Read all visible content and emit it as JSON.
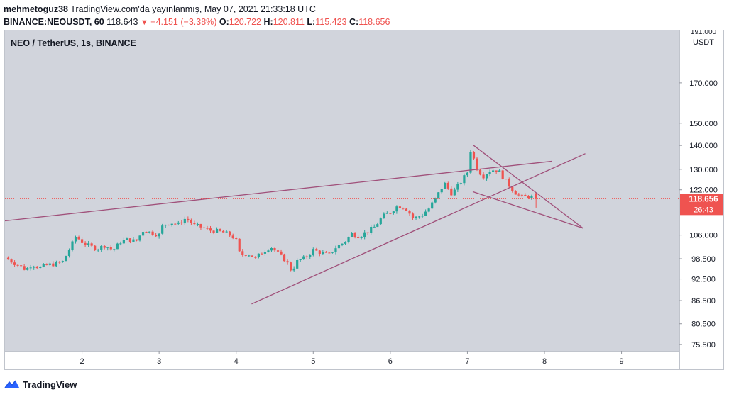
{
  "header": {
    "author": "mehmetoguz38",
    "published": "TradingView.com'da yayınlanmış, May 07, 2021 21:33:18 UTC",
    "symbol": "BINANCE:NEOUSDT, 60",
    "last": "118.643",
    "change_arrow": "▼",
    "change": "−4.151 (−3.38%)",
    "o_label": "O:",
    "o_value": "120.722",
    "h_label": "H:",
    "h_value": "120.811",
    "l_label": "L:",
    "l_value": "115.423",
    "c_label": "C:",
    "c_value": "118.656"
  },
  "footer": {
    "brand": "TradingView"
  },
  "chart_data": {
    "type": "candlestick",
    "title": "NEO / TetherUS, 1s, BINANCE",
    "x_ticks": [
      "2",
      "3",
      "4",
      "5",
      "6",
      "7",
      "8",
      "9"
    ],
    "y_ticks": [
      "170.000",
      "150.000",
      "140.000",
      "130.000",
      "122.000",
      "106.000",
      "98.500",
      "92.500",
      "86.500",
      "80.500",
      "75.500"
    ],
    "y_axis_unit": "USDT",
    "y_axis_top_partial": "191.000",
    "scale": "log",
    "ylim": [
      74,
      200
    ],
    "xlim": [
      1.0,
      9.75
    ],
    "last_price": "118.656",
    "countdown": "26:43",
    "colors": {
      "up": "#26a69a",
      "down": "#ef5350",
      "trendline": "#a0507a",
      "background": "#d1d4dc",
      "price_line": "#ef5350"
    },
    "close_path": [
      [
        1.0,
        98.8
      ],
      [
        1.1,
        97.5
      ],
      [
        1.2,
        96.2
      ],
      [
        1.27,
        95.2
      ],
      [
        1.35,
        96.8
      ],
      [
        1.45,
        95.8
      ],
      [
        1.55,
        96.6
      ],
      [
        1.65,
        96.9
      ],
      [
        1.75,
        97.6
      ],
      [
        1.85,
        102.0
      ],
      [
        1.92,
        105.6
      ],
      [
        2.0,
        103.8
      ],
      [
        2.1,
        102.4
      ],
      [
        2.2,
        101.6
      ],
      [
        2.3,
        102.7
      ],
      [
        2.4,
        101.1
      ],
      [
        2.5,
        103.8
      ],
      [
        2.6,
        104.6
      ],
      [
        2.7,
        103.9
      ],
      [
        2.8,
        107.8
      ],
      [
        2.9,
        106.7
      ],
      [
        3.0,
        106.1
      ],
      [
        3.05,
        109.4
      ],
      [
        3.15,
        110.2
      ],
      [
        3.25,
        109.6
      ],
      [
        3.35,
        111.8
      ],
      [
        3.45,
        109.3
      ],
      [
        3.55,
        108.6
      ],
      [
        3.65,
        107.6
      ],
      [
        3.75,
        107.3
      ],
      [
        3.85,
        106.8
      ],
      [
        3.95,
        105.6
      ],
      [
        4.0,
        104.2
      ],
      [
        4.05,
        99.6
      ],
      [
        4.15,
        100.1
      ],
      [
        4.25,
        98.6
      ],
      [
        4.35,
        100.8
      ],
      [
        4.45,
        102.2
      ],
      [
        4.55,
        100.0
      ],
      [
        4.65,
        97.8
      ],
      [
        4.72,
        94.8
      ],
      [
        4.8,
        98.0
      ],
      [
        4.9,
        98.8
      ],
      [
        5.0,
        101.2
      ],
      [
        5.1,
        100.4
      ],
      [
        5.2,
        99.6
      ],
      [
        5.3,
        102.2
      ],
      [
        5.4,
        103.6
      ],
      [
        5.5,
        106.4
      ],
      [
        5.6,
        105.6
      ],
      [
        5.7,
        107.2
      ],
      [
        5.8,
        108.8
      ],
      [
        5.9,
        112.3
      ],
      [
        6.0,
        113.8
      ],
      [
        6.1,
        116.2
      ],
      [
        6.2,
        115.3
      ],
      [
        6.3,
        111.6
      ],
      [
        6.4,
        112.6
      ],
      [
        6.5,
        115.1
      ],
      [
        6.6,
        119.3
      ],
      [
        6.7,
        124.6
      ],
      [
        6.8,
        120.4
      ],
      [
        6.9,
        124.3
      ],
      [
        7.0,
        128.8
      ],
      [
        7.05,
        139.6
      ],
      [
        7.1,
        131.6
      ],
      [
        7.2,
        127.1
      ],
      [
        7.3,
        129.8
      ],
      [
        7.4,
        129.6
      ],
      [
        7.5,
        125.3
      ],
      [
        7.6,
        121.4
      ],
      [
        7.7,
        119.3
      ],
      [
        7.8,
        119.6
      ],
      [
        7.87,
        118.7
      ]
    ],
    "trendlines": [
      {
        "from": [
          1.0,
          110.8
        ],
        "to": [
          8.1,
          133.3
        ]
      },
      {
        "from": [
          4.2,
          85.6
        ],
        "to": [
          8.53,
          136.5
        ]
      },
      {
        "from": [
          7.07,
          140.3
        ],
        "to": [
          8.5,
          108.3
        ]
      },
      {
        "from": [
          7.07,
          121.3
        ],
        "to": [
          8.5,
          108.3
        ]
      }
    ]
  }
}
